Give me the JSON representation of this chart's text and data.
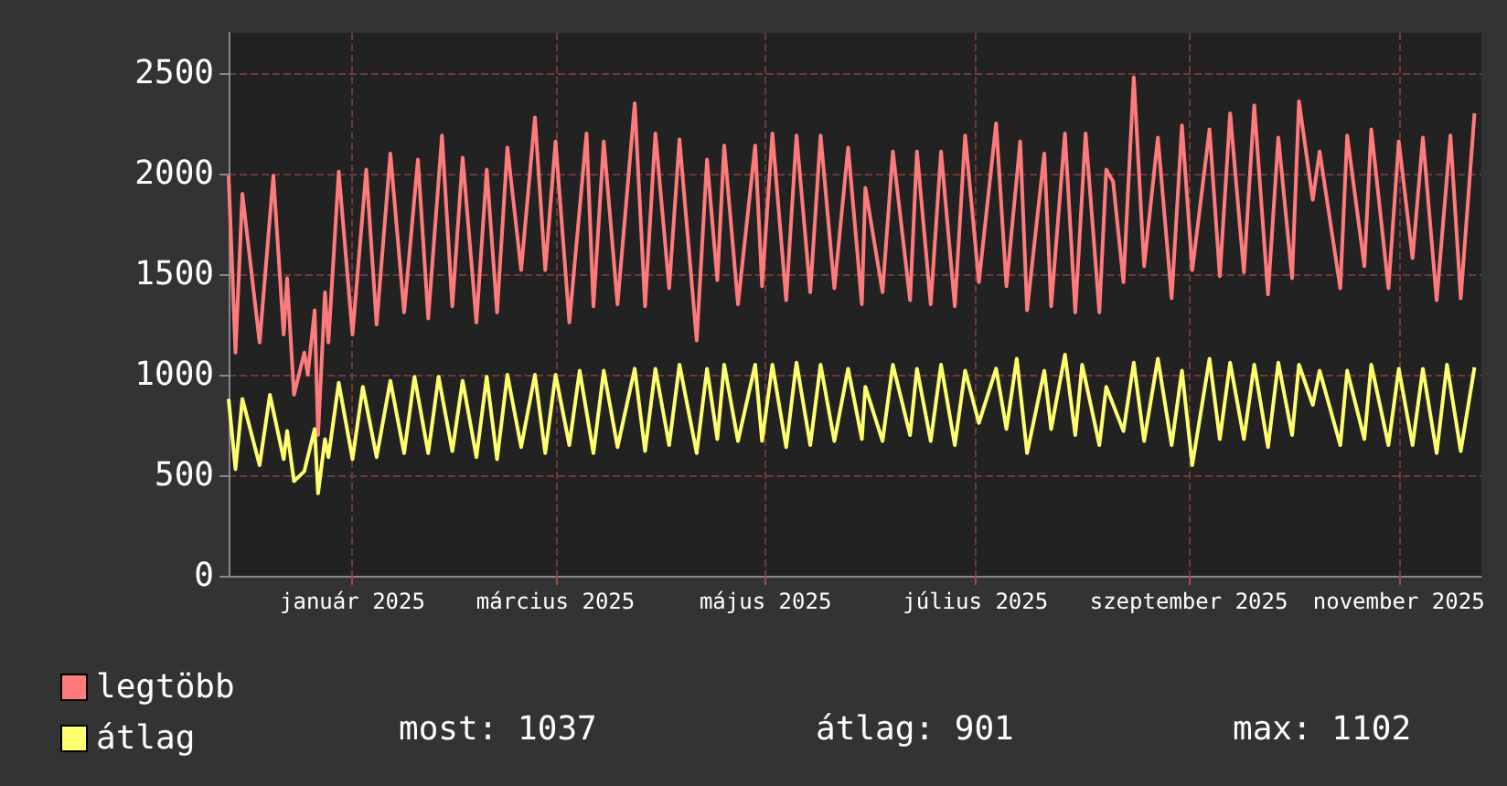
{
  "chart_data": {
    "type": "line",
    "xlim": [
      "2024-11-26",
      "2025-11-25"
    ],
    "ylim": [
      0,
      2700
    ],
    "yticks": [
      0,
      500,
      1000,
      1500,
      2000,
      2500
    ],
    "xticks": [
      {
        "value": "2025-01-01",
        "label": "január 2025"
      },
      {
        "value": "2025-03-01",
        "label": "március 2025"
      },
      {
        "value": "2025-05-01",
        "label": "május 2025"
      },
      {
        "value": "2025-07-01",
        "label": "július 2025"
      },
      {
        "value": "2025-09-01",
        "label": "szeptember 2025"
      },
      {
        "value": "2025-11-01",
        "label": "november 2025"
      }
    ],
    "grid": true,
    "legend": "bottom",
    "marker": "none",
    "line_style": "solid",
    "annotations": [
      "most: 1037",
      "átlag: 901",
      "max: 1102"
    ],
    "series": [
      {
        "name": "legtöbb",
        "color": "#ff7b7b",
        "x": [
          "2024-11-26",
          "2024-11-28",
          "2024-11-30",
          "2024-12-05",
          "2024-12-09",
          "2024-12-12",
          "2024-12-13",
          "2024-12-15",
          "2024-12-18",
          "2024-12-19",
          "2024-12-21",
          "2024-12-22",
          "2024-12-24",
          "2024-12-25",
          "2024-12-28",
          "2025-01-01",
          "2025-01-05",
          "2025-01-08",
          "2025-01-12",
          "2025-01-16",
          "2025-01-20",
          "2025-01-23",
          "2025-01-27",
          "2025-01-30",
          "2025-02-02",
          "2025-02-06",
          "2025-02-09",
          "2025-02-12",
          "2025-02-15",
          "2025-02-19",
          "2025-02-23",
          "2025-02-26",
          "2025-03-01",
          "2025-03-05",
          "2025-03-10",
          "2025-03-12",
          "2025-03-15",
          "2025-03-19",
          "2025-03-24",
          "2025-03-27",
          "2025-03-30",
          "2025-04-03",
          "2025-04-06",
          "2025-04-11",
          "2025-04-14",
          "2025-04-17",
          "2025-04-19",
          "2025-04-23",
          "2025-04-28",
          "2025-04-30",
          "2025-05-03",
          "2025-05-07",
          "2025-05-10",
          "2025-05-14",
          "2025-05-17",
          "2025-05-21",
          "2025-05-25",
          "2025-05-29",
          "2025-05-30",
          "2025-06-04",
          "2025-06-07",
          "2025-06-12",
          "2025-06-14",
          "2025-06-18",
          "2025-06-21",
          "2025-06-25",
          "2025-06-28",
          "2025-07-02",
          "2025-07-07",
          "2025-07-10",
          "2025-07-14",
          "2025-07-16",
          "2025-07-21",
          "2025-07-23",
          "2025-07-27",
          "2025-07-30",
          "2025-08-02",
          "2025-08-06",
          "2025-08-08",
          "2025-08-10",
          "2025-08-13",
          "2025-08-16",
          "2025-08-19",
          "2025-08-23",
          "2025-08-27",
          "2025-08-30",
          "2025-09-02",
          "2025-09-07",
          "2025-09-10",
          "2025-09-13",
          "2025-09-17",
          "2025-09-20",
          "2025-09-24",
          "2025-09-27",
          "2025-10-01",
          "2025-10-03",
          "2025-10-07",
          "2025-10-09",
          "2025-10-15",
          "2025-10-17",
          "2025-10-22",
          "2025-10-24",
          "2025-10-29",
          "2025-11-01",
          "2025-11-05",
          "2025-11-08",
          "2025-11-12",
          "2025-11-16",
          "2025-11-19",
          "2025-11-23"
        ],
        "values": [
          1990,
          1110,
          1900,
          1160,
          1990,
          1200,
          1480,
          900,
          1110,
          1000,
          1320,
          700,
          1410,
          1160,
          2010,
          1200,
          2020,
          1250,
          2100,
          1310,
          2070,
          1280,
          2190,
          1340,
          2080,
          1260,
          2020,
          1310,
          2130,
          1520,
          2280,
          1520,
          2160,
          1260,
          2200,
          1340,
          2160,
          1350,
          2350,
          1340,
          2200,
          1430,
          2170,
          1170,
          2070,
          1470,
          2140,
          1350,
          2140,
          1440,
          2200,
          1370,
          2190,
          1410,
          2190,
          1430,
          2130,
          1350,
          1930,
          1410,
          2110,
          1370,
          2110,
          1350,
          2110,
          1340,
          2190,
          1460,
          2250,
          1440,
          2160,
          1320,
          2100,
          1340,
          2200,
          1310,
          2200,
          1310,
          2020,
          1960,
          1460,
          2480,
          1540,
          2180,
          1380,
          2240,
          1520,
          2220,
          1490,
          2300,
          1510,
          2340,
          1400,
          2180,
          1480,
          2360,
          1870,
          2110,
          1430,
          2190,
          1540,
          2220,
          1430,
          2160,
          1580,
          2180,
          1370,
          2190,
          1380,
          2300
        ]
      },
      {
        "name": "átlag",
        "color": "#ffff70",
        "x": [
          "2024-11-26",
          "2024-11-28",
          "2024-11-30",
          "2024-12-05",
          "2024-12-08",
          "2024-12-12",
          "2024-12-13",
          "2024-12-15",
          "2024-12-18",
          "2024-12-21",
          "2024-12-22",
          "2024-12-24",
          "2024-12-25",
          "2024-12-28",
          "2025-01-01",
          "2025-01-04",
          "2025-01-08",
          "2025-01-12",
          "2025-01-16",
          "2025-01-19",
          "2025-01-23",
          "2025-01-26",
          "2025-01-30",
          "2025-02-02",
          "2025-02-06",
          "2025-02-09",
          "2025-02-12",
          "2025-02-15",
          "2025-02-19",
          "2025-02-23",
          "2025-02-26",
          "2025-03-01",
          "2025-03-05",
          "2025-03-08",
          "2025-03-12",
          "2025-03-15",
          "2025-03-19",
          "2025-03-24",
          "2025-03-27",
          "2025-03-30",
          "2025-04-03",
          "2025-04-06",
          "2025-04-11",
          "2025-04-14",
          "2025-04-17",
          "2025-04-19",
          "2025-04-23",
          "2025-04-28",
          "2025-04-30",
          "2025-05-03",
          "2025-05-07",
          "2025-05-10",
          "2025-05-14",
          "2025-05-17",
          "2025-05-21",
          "2025-05-25",
          "2025-05-29",
          "2025-05-30",
          "2025-06-04",
          "2025-06-07",
          "2025-06-12",
          "2025-06-14",
          "2025-06-18",
          "2025-06-21",
          "2025-06-25",
          "2025-06-28",
          "2025-07-02",
          "2025-07-07",
          "2025-07-10",
          "2025-07-13",
          "2025-07-16",
          "2025-07-21",
          "2025-07-23",
          "2025-07-27",
          "2025-07-30",
          "2025-08-01",
          "2025-08-06",
          "2025-08-08",
          "2025-08-13",
          "2025-08-16",
          "2025-08-19",
          "2025-08-23",
          "2025-08-27",
          "2025-08-30",
          "2025-09-02",
          "2025-09-07",
          "2025-09-10",
          "2025-09-13",
          "2025-09-17",
          "2025-09-20",
          "2025-09-24",
          "2025-09-27",
          "2025-10-01",
          "2025-10-03",
          "2025-10-07",
          "2025-10-09",
          "2025-10-15",
          "2025-10-17",
          "2025-10-22",
          "2025-10-24",
          "2025-10-29",
          "2025-11-01",
          "2025-11-05",
          "2025-11-08",
          "2025-11-12",
          "2025-11-15",
          "2025-11-19",
          "2025-11-23"
        ],
        "values": [
          880,
          530,
          880,
          550,
          900,
          580,
          720,
          470,
          520,
          730,
          410,
          680,
          590,
          960,
          580,
          940,
          590,
          970,
          610,
          990,
          610,
          990,
          620,
          970,
          590,
          990,
          580,
          1000,
          640,
          1000,
          610,
          1000,
          650,
          1020,
          610,
          1020,
          640,
          1030,
          620,
          1030,
          650,
          1050,
          610,
          1030,
          680,
          1050,
          670,
          1050,
          670,
          1050,
          640,
          1060,
          650,
          1050,
          670,
          1030,
          680,
          940,
          670,
          1050,
          700,
          1030,
          670,
          1050,
          650,
          1020,
          760,
          1030,
          730,
          1080,
          610,
          1020,
          730,
          1100,
          700,
          1050,
          650,
          940,
          720,
          1060,
          670,
          1080,
          650,
          1020,
          550,
          1080,
          680,
          1060,
          680,
          1050,
          640,
          1060,
          700,
          1050,
          850,
          1020,
          650,
          1020,
          680,
          1050,
          650,
          1030,
          650,
          1030,
          610,
          1050,
          620,
          1037
        ]
      }
    ]
  }
}
